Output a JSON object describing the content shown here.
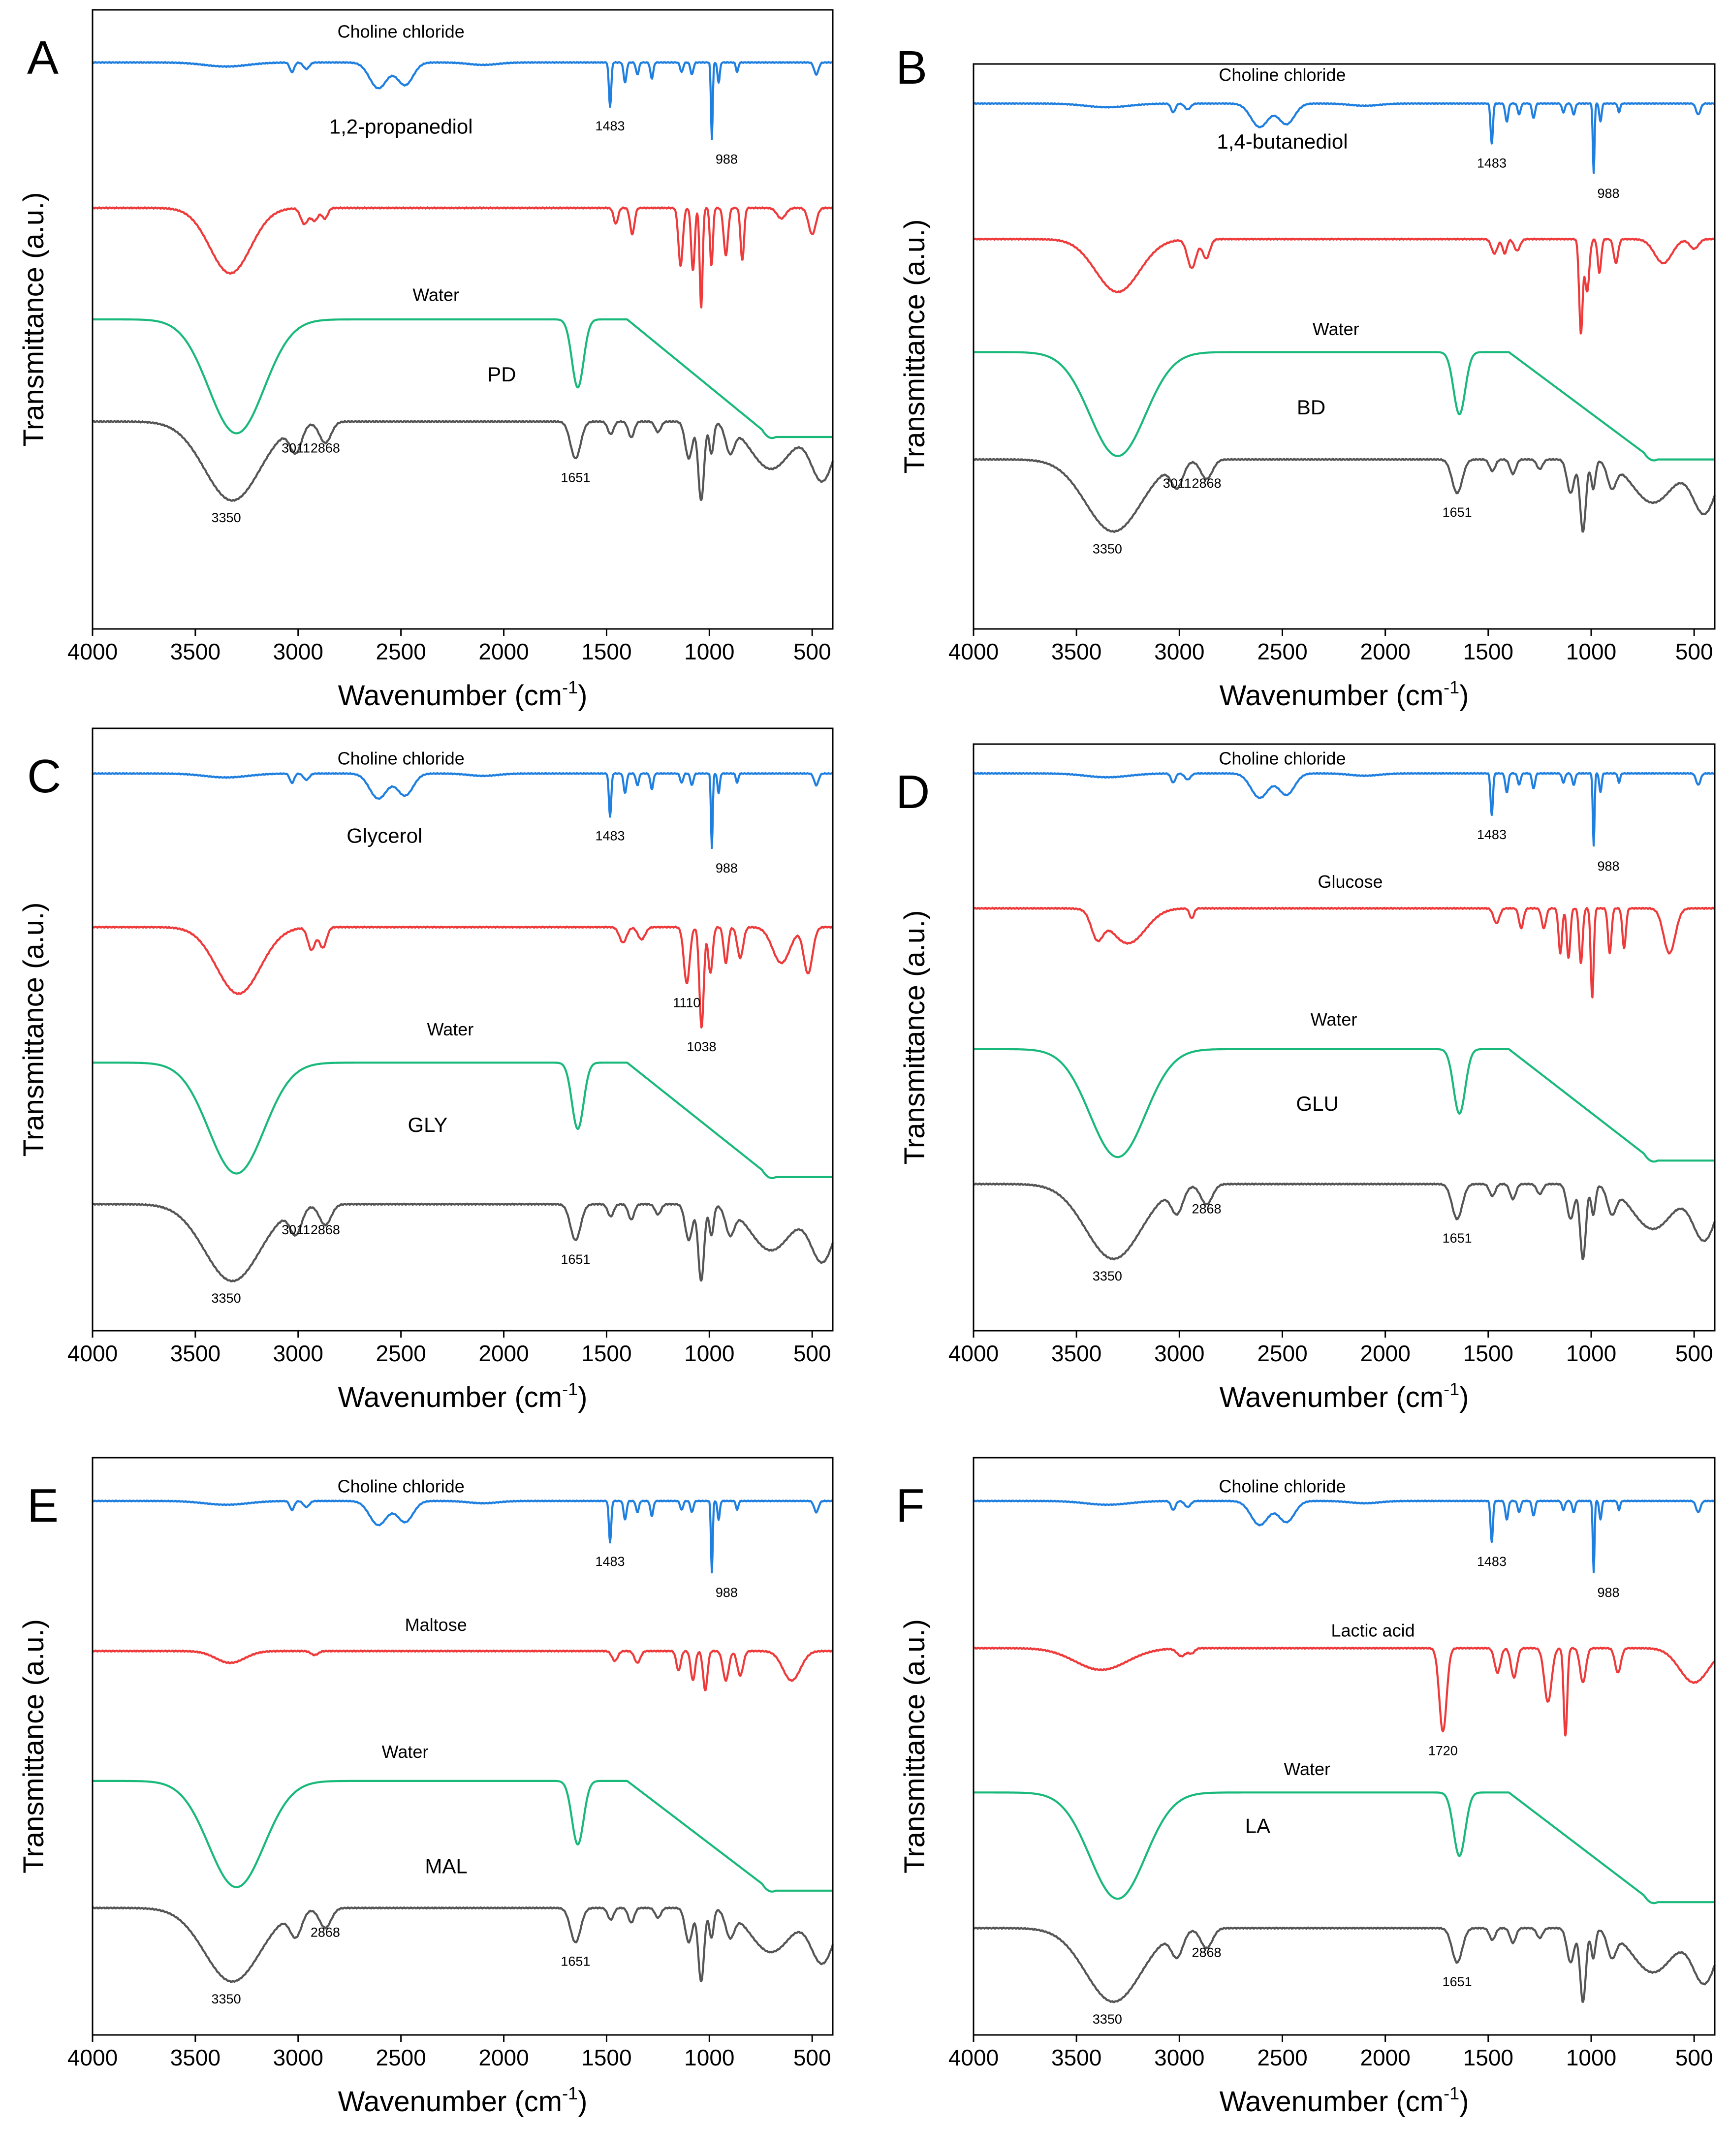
{
  "figure": {
    "colors": {
      "choline": "#1f7fe0",
      "component": "#ee3a3a",
      "water": "#19b97b",
      "des": "#555555"
    },
    "x_axis_label": "Wavenumber (cm",
    "x_axis_sup": "-1",
    "x_axis_close": ")",
    "y_axis_label": "Transmittance (a.u.)",
    "x_ticks": [
      "4000",
      "3500",
      "3000",
      "2500",
      "2000",
      "1500",
      "1000",
      "500"
    ]
  },
  "chart_data": [
    {
      "type": "line",
      "panel": "A",
      "xlabel": "Wavenumber (cm-1)",
      "ylabel": "Transmittance (a.u.)",
      "xlim": [
        4000,
        400
      ],
      "x_reversed": true,
      "series": [
        {
          "name": "Choline chloride",
          "role": "choline"
        },
        {
          "name": "1,2-propanediol",
          "role": "component"
        },
        {
          "name": "Water",
          "role": "water"
        },
        {
          "name": "PD",
          "role": "des"
        }
      ],
      "peak_labels": [
        {
          "text": "1483",
          "x": 1483,
          "series": "Choline chloride"
        },
        {
          "text": "988",
          "x": 988,
          "series": "Choline chloride"
        },
        {
          "text": "3011",
          "x": 3011,
          "series": "PD"
        },
        {
          "text": "2868",
          "x": 2868,
          "series": "PD"
        },
        {
          "text": "1651",
          "x": 1651,
          "series": "PD"
        },
        {
          "text": "3350",
          "x": 3350,
          "series": "PD"
        }
      ]
    },
    {
      "type": "line",
      "panel": "B",
      "xlabel": "Wavenumber (cm-1)",
      "ylabel": "Transmittance (a.u.)",
      "xlim": [
        4000,
        400
      ],
      "x_reversed": true,
      "series": [
        {
          "name": "Choline chloride",
          "role": "choline"
        },
        {
          "name": "1,4-butanediol",
          "role": "component"
        },
        {
          "name": "Water",
          "role": "water"
        },
        {
          "name": "BD",
          "role": "des"
        }
      ],
      "peak_labels": [
        {
          "text": "1483",
          "x": 1483,
          "series": "Choline chloride"
        },
        {
          "text": "988",
          "x": 988,
          "series": "Choline chloride"
        },
        {
          "text": "3011",
          "x": 3011,
          "series": "BD"
        },
        {
          "text": "2868",
          "x": 2868,
          "series": "BD"
        },
        {
          "text": "1651",
          "x": 1651,
          "series": "BD"
        },
        {
          "text": "3350",
          "x": 3350,
          "series": "BD"
        }
      ]
    },
    {
      "type": "line",
      "panel": "C",
      "xlabel": "Wavenumber (cm-1)",
      "ylabel": "Transmittance (a.u.)",
      "xlim": [
        4000,
        400
      ],
      "x_reversed": true,
      "series": [
        {
          "name": "Choline chloride",
          "role": "choline"
        },
        {
          "name": "Glycerol",
          "role": "component"
        },
        {
          "name": "Water",
          "role": "water"
        },
        {
          "name": "GLY",
          "role": "des"
        }
      ],
      "peak_labels": [
        {
          "text": "1483",
          "x": 1483,
          "series": "Choline chloride"
        },
        {
          "text": "988",
          "x": 988,
          "series": "Choline chloride"
        },
        {
          "text": "1110",
          "x": 1110,
          "series": "Glycerol"
        },
        {
          "text": "1038",
          "x": 1038,
          "series": "Glycerol"
        },
        {
          "text": "3011",
          "x": 3011,
          "series": "GLY"
        },
        {
          "text": "2868",
          "x": 2868,
          "series": "GLY"
        },
        {
          "text": "1651",
          "x": 1651,
          "series": "GLY"
        },
        {
          "text": "3350",
          "x": 3350,
          "series": "GLY"
        }
      ]
    },
    {
      "type": "line",
      "panel": "D",
      "xlabel": "Wavenumber (cm-1)",
      "ylabel": "Transmittance (a.u.)",
      "xlim": [
        4000,
        400
      ],
      "x_reversed": true,
      "series": [
        {
          "name": "Choline chloride",
          "role": "choline"
        },
        {
          "name": "Glucose",
          "role": "component"
        },
        {
          "name": "Water",
          "role": "water"
        },
        {
          "name": "GLU",
          "role": "des"
        }
      ],
      "peak_labels": [
        {
          "text": "1483",
          "x": 1483,
          "series": "Choline chloride"
        },
        {
          "text": "988",
          "x": 988,
          "series": "Choline chloride"
        },
        {
          "text": "2868",
          "x": 2868,
          "series": "GLU"
        },
        {
          "text": "1651",
          "x": 1651,
          "series": "GLU"
        },
        {
          "text": "3350",
          "x": 3350,
          "series": "GLU"
        }
      ]
    },
    {
      "type": "line",
      "panel": "E",
      "xlabel": "Wavenumber (cm-1)",
      "ylabel": "Transmittance (a.u.)",
      "xlim": [
        4000,
        400
      ],
      "x_reversed": true,
      "series": [
        {
          "name": "Choline chloride",
          "role": "choline"
        },
        {
          "name": "Maltose",
          "role": "component"
        },
        {
          "name": "Water",
          "role": "water"
        },
        {
          "name": "MAL",
          "role": "des"
        }
      ],
      "peak_labels": [
        {
          "text": "1483",
          "x": 1483,
          "series": "Choline chloride"
        },
        {
          "text": "988",
          "x": 988,
          "series": "Choline chloride"
        },
        {
          "text": "2868",
          "x": 2868,
          "series": "MAL"
        },
        {
          "text": "1651",
          "x": 1651,
          "series": "MAL"
        },
        {
          "text": "3350",
          "x": 3350,
          "series": "MAL"
        }
      ]
    },
    {
      "type": "line",
      "panel": "F",
      "xlabel": "Wavenumber (cm-1)",
      "ylabel": "Transmittance (a.u.)",
      "xlim": [
        4000,
        400
      ],
      "x_reversed": true,
      "series": [
        {
          "name": "Choline chloride",
          "role": "choline"
        },
        {
          "name": "Lactic acid",
          "role": "component"
        },
        {
          "name": "Water",
          "role": "water"
        },
        {
          "name": "LA",
          "role": "des"
        }
      ],
      "peak_labels": [
        {
          "text": "1483",
          "x": 1483,
          "series": "Choline chloride"
        },
        {
          "text": "988",
          "x": 988,
          "series": "Choline chloride"
        },
        {
          "text": "1720",
          "x": 1720,
          "series": "Lactic acid"
        },
        {
          "text": "2868",
          "x": 2868,
          "series": "LA"
        },
        {
          "text": "1651",
          "x": 1651,
          "series": "LA"
        },
        {
          "text": "3350",
          "x": 3350,
          "series": "LA"
        }
      ]
    }
  ]
}
